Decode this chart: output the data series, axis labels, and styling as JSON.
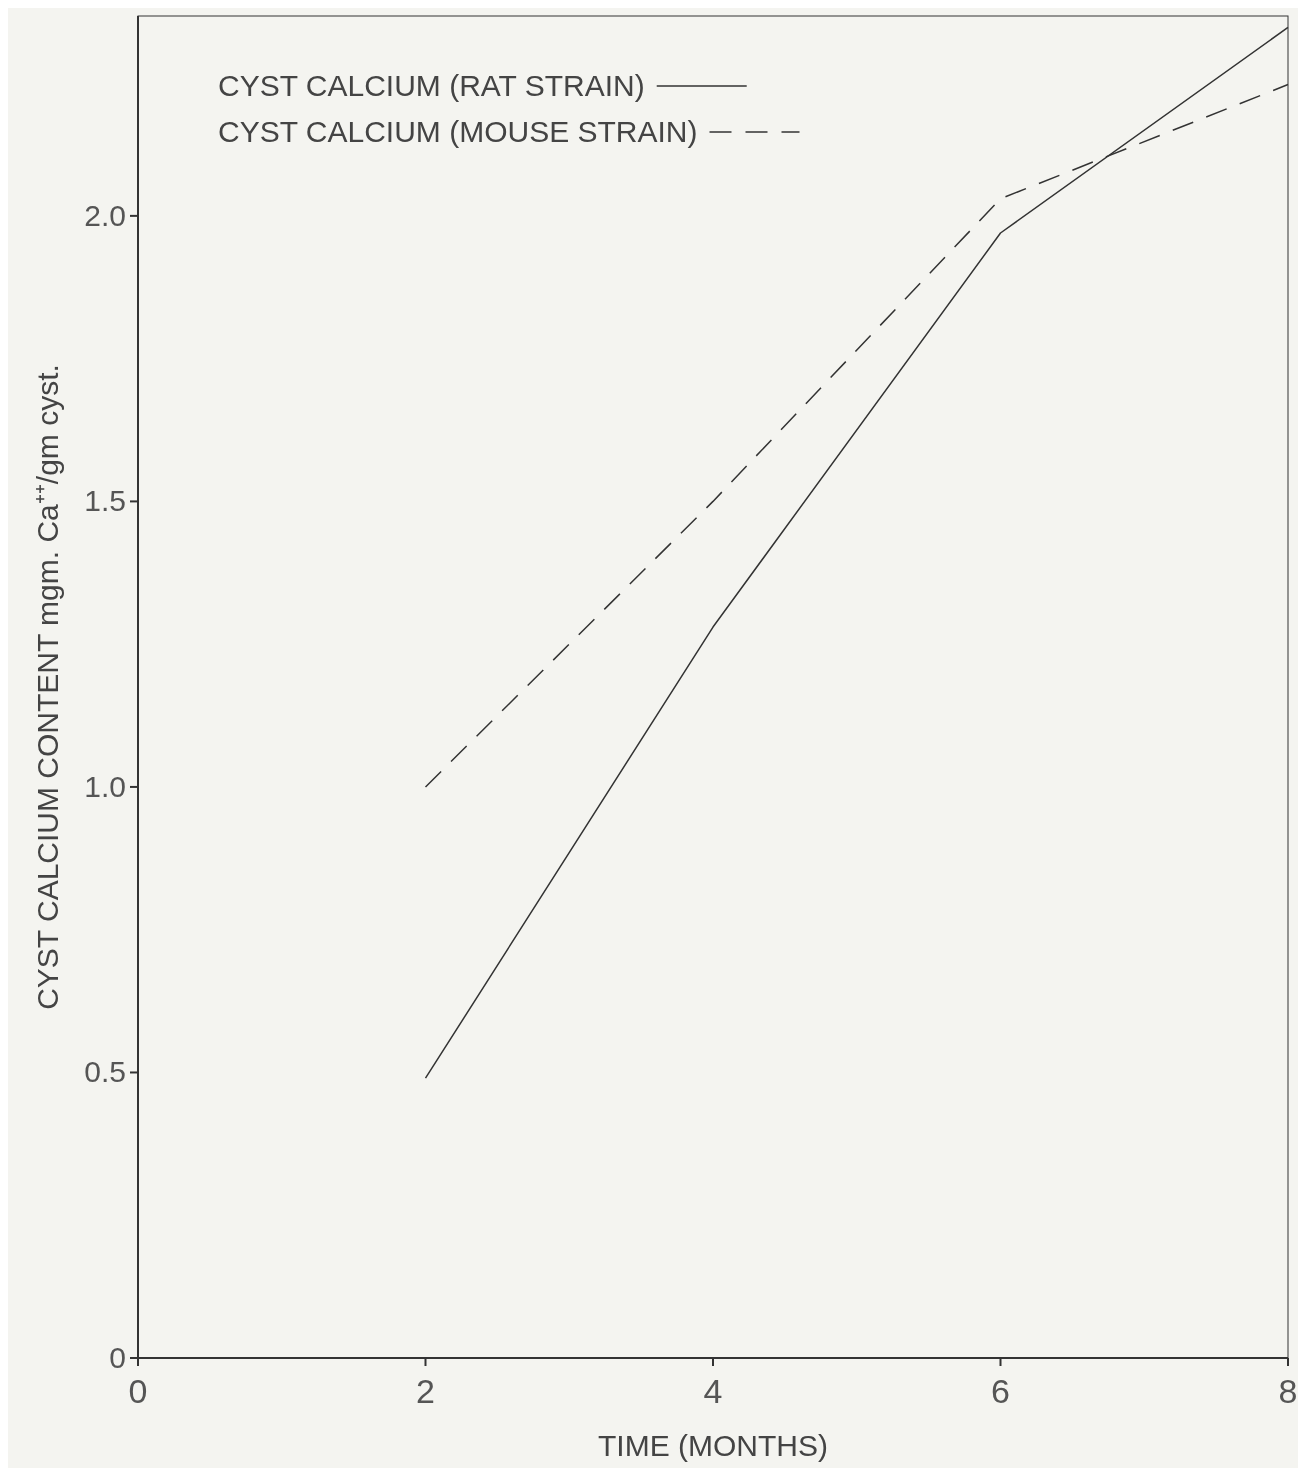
{
  "chart_data": {
    "type": "line",
    "xlabel": "TIME (MONTHS)",
    "ylabel": "CYST CALCIUM CONTENT mgm. Ca⁺⁺/gm cyst.",
    "x": [
      2,
      4,
      6,
      8
    ],
    "series": [
      {
        "name": "CYST CALCIUM (RAT STRAIN)",
        "color": "#333333",
        "values": [
          0.49,
          1.28,
          1.97,
          2.33
        ],
        "line_style": "solid"
      },
      {
        "name": "CYST CALCIUM (MOUSE STRAIN)",
        "color": "#333333",
        "values": [
          1.0,
          1.5,
          2.03,
          2.23
        ],
        "line_style": "dashed"
      }
    ],
    "xlim": [
      0,
      8
    ],
    "ylim": [
      0,
      2.35
    ],
    "xticks": [
      0,
      2,
      4,
      6,
      8
    ],
    "yticks": [
      0,
      {
        "value": 0.5,
        "label": "0.5"
      },
      {
        "value": 1,
        "label": "1.0"
      },
      {
        "value": 1.5,
        "label": "1.5"
      },
      {
        "value": 2,
        "label": "2.0"
      }
    ],
    "grid": false,
    "legend": "top left",
    "marker": "none"
  }
}
